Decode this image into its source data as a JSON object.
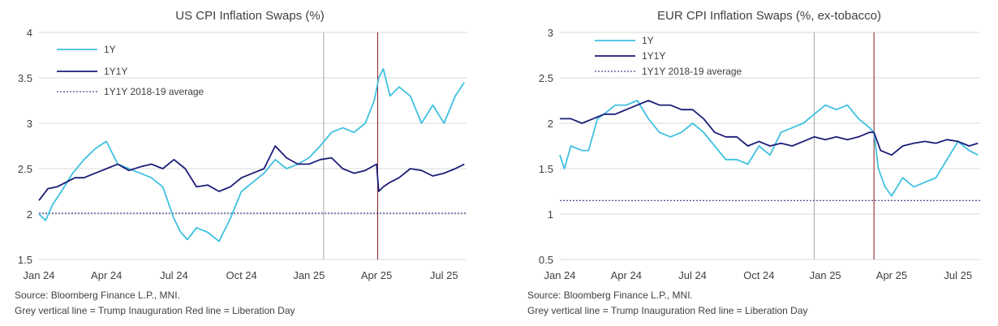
{
  "chart_data": [
    {
      "type": "line",
      "title": "US CPI Inflation Swaps (%)",
      "ylim": [
        1.5,
        4
      ],
      "yticks": [
        "1.5",
        "2",
        "2.5",
        "3",
        "3.5",
        "4"
      ],
      "yticks_values": [
        1.5,
        2,
        2.5,
        3,
        3.5,
        4
      ],
      "xticks": [
        "Jan 24",
        "Apr 24",
        "Jul 24",
        "Oct 24",
        "Jan 25",
        "Apr 25",
        "Jul 25"
      ],
      "x_range_months": [
        0,
        19
      ],
      "legend": [
        "1Y",
        "1Y1Y",
        "1Y1Y 2018-19 average"
      ],
      "average_1y1y": 2.01,
      "trump_inauguration_month": 12.65,
      "liberation_day_month": 15.05,
      "series": [
        {
          "name": "1Y",
          "color": "#3ec1e0",
          "x": [
            0,
            0.3,
            0.6,
            1,
            1.5,
            2,
            2.5,
            3,
            3.5,
            4,
            4.5,
            5,
            5.5,
            6,
            6.3,
            6.6,
            7,
            7.5,
            8,
            8.5,
            9,
            9.5,
            10,
            10.5,
            11,
            11.5,
            12,
            12.5,
            13,
            13.5,
            14,
            14.5,
            14.9,
            15.1,
            15.3,
            15.6,
            16,
            16.5,
            17,
            17.5,
            18,
            18.5,
            18.9
          ],
          "values": [
            2.0,
            1.93,
            2.1,
            2.25,
            2.45,
            2.6,
            2.72,
            2.8,
            2.55,
            2.5,
            2.45,
            2.4,
            2.3,
            1.95,
            1.8,
            1.72,
            1.85,
            1.8,
            1.7,
            1.95,
            2.25,
            2.35,
            2.45,
            2.6,
            2.5,
            2.55,
            2.62,
            2.75,
            2.9,
            2.95,
            2.9,
            3.0,
            3.25,
            3.5,
            3.6,
            3.3,
            3.4,
            3.3,
            3.0,
            3.2,
            3.0,
            3.3,
            3.45
          ]
        },
        {
          "name": "1Y1Y",
          "color": "#1c1c78",
          "x": [
            0,
            0.4,
            0.8,
            1.2,
            1.6,
            2,
            2.5,
            3,
            3.5,
            4,
            4.5,
            5,
            5.5,
            6,
            6.5,
            7,
            7.5,
            8,
            8.5,
            9,
            9.5,
            10,
            10.5,
            11,
            11.5,
            12,
            12.5,
            13,
            13.5,
            14,
            14.5,
            15,
            15.1,
            15.3,
            15.6,
            16,
            16.5,
            17,
            17.5,
            18,
            18.5,
            18.9
          ],
          "values": [
            2.15,
            2.28,
            2.3,
            2.35,
            2.4,
            2.4,
            2.45,
            2.5,
            2.55,
            2.48,
            2.52,
            2.55,
            2.5,
            2.6,
            2.5,
            2.3,
            2.32,
            2.25,
            2.3,
            2.4,
            2.45,
            2.5,
            2.75,
            2.62,
            2.55,
            2.55,
            2.6,
            2.62,
            2.5,
            2.45,
            2.48,
            2.55,
            2.25,
            2.3,
            2.35,
            2.4,
            2.5,
            2.48,
            2.42,
            2.45,
            2.5,
            2.55
          ]
        }
      ],
      "source": "Source: Bloomberg Finance L.P., MNI.",
      "note": "Grey vertical line = Trump Inauguration  Red line = Liberation Day"
    },
    {
      "type": "line",
      "title": "EUR CPI Inflation Swaps (%, ex-tobacco)",
      "ylim": [
        0.5,
        3
      ],
      "yticks": [
        "0.5",
        "1",
        "1.5",
        "2",
        "2.5",
        "3"
      ],
      "yticks_values": [
        0.5,
        1,
        1.5,
        2,
        2.5,
        3
      ],
      "xticks": [
        "Jan 24",
        "Apr 24",
        "Jul 24",
        "Oct 24",
        "Jan 25",
        "Apr 25",
        "Jul 25"
      ],
      "x_range_months": [
        0,
        19
      ],
      "legend": [
        "1Y",
        "1Y1Y",
        "1Y1Y 2018-19 average"
      ],
      "average_1y1y": 1.15,
      "trump_inauguration_month": 11.5,
      "liberation_day_month": 14.2,
      "series": [
        {
          "name": "1Y",
          "color": "#3ec1e0",
          "x": [
            0,
            0.2,
            0.5,
            1,
            1.3,
            1.7,
            2,
            2.5,
            3,
            3.5,
            4,
            4.5,
            5,
            5.5,
            6,
            6.5,
            7,
            7.5,
            8,
            8.5,
            9,
            9.5,
            10,
            10.5,
            11,
            11.5,
            12,
            12.5,
            13,
            13.5,
            14,
            14.2,
            14.4,
            14.7,
            15,
            15.5,
            16,
            16.5,
            17,
            17.5,
            18,
            18.5,
            18.9
          ],
          "values": [
            1.65,
            1.5,
            1.75,
            1.7,
            1.7,
            2.05,
            2.1,
            2.2,
            2.2,
            2.25,
            2.05,
            1.9,
            1.85,
            1.9,
            2.0,
            1.9,
            1.75,
            1.6,
            1.6,
            1.55,
            1.75,
            1.65,
            1.9,
            1.95,
            2.0,
            2.1,
            2.2,
            2.15,
            2.2,
            2.05,
            1.95,
            1.9,
            1.5,
            1.3,
            1.2,
            1.4,
            1.3,
            1.35,
            1.4,
            1.6,
            1.8,
            1.7,
            1.65
          ]
        },
        {
          "name": "1Y1Y",
          "color": "#1c1c78",
          "x": [
            0,
            0.5,
            1,
            1.5,
            2,
            2.5,
            3,
            3.5,
            4,
            4.5,
            5,
            5.5,
            6,
            6.5,
            7,
            7.5,
            8,
            8.5,
            9,
            9.5,
            10,
            10.5,
            11,
            11.5,
            12,
            12.5,
            13,
            13.5,
            14,
            14.2,
            14.5,
            15,
            15.5,
            16,
            16.5,
            17,
            17.5,
            18,
            18.5,
            18.9
          ],
          "values": [
            2.05,
            2.05,
            2.0,
            2.05,
            2.1,
            2.1,
            2.15,
            2.2,
            2.25,
            2.2,
            2.2,
            2.15,
            2.15,
            2.05,
            1.9,
            1.85,
            1.85,
            1.75,
            1.8,
            1.75,
            1.78,
            1.75,
            1.8,
            1.85,
            1.82,
            1.85,
            1.82,
            1.85,
            1.9,
            1.9,
            1.7,
            1.65,
            1.75,
            1.78,
            1.8,
            1.78,
            1.82,
            1.8,
            1.75,
            1.78
          ]
        }
      ],
      "source": "Source: Bloomberg Finance L.P., MNI.",
      "note": "Grey vertical line = Trump Inauguration  Red line = Liberation Day"
    }
  ]
}
